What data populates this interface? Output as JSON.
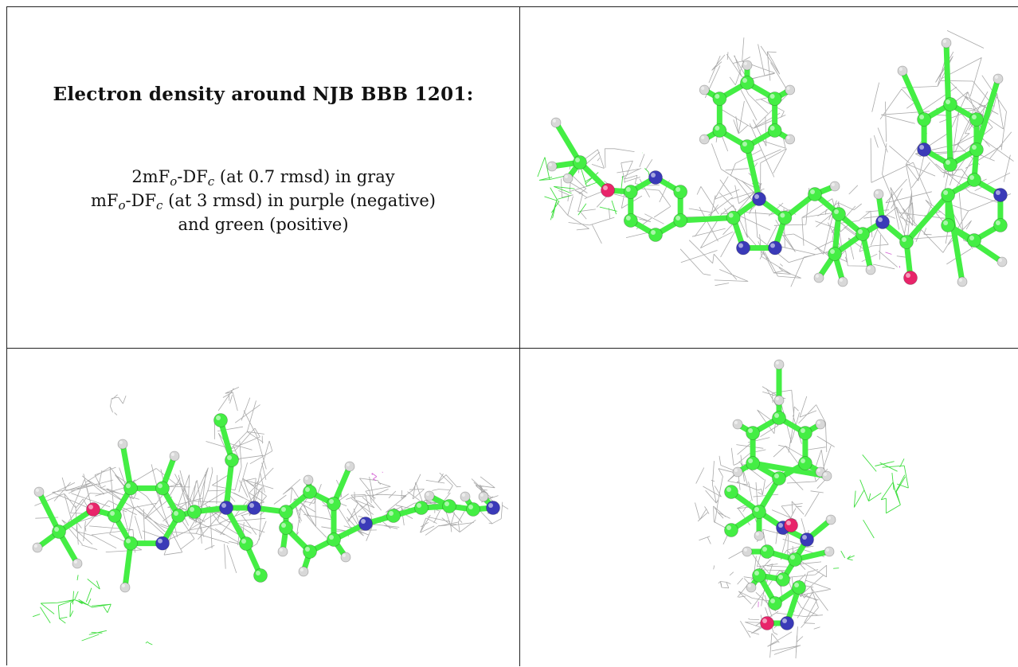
{
  "caption": {
    "title": "Electron density around NJB BBB 1201:",
    "line1": {
      "pre": "2mF",
      "sub1": "o",
      "mid": "-DF",
      "sub2": "c",
      "post": " (at 0.7 rmsd) in gray"
    },
    "line2": {
      "pre": "mF",
      "sub1": "o",
      "mid": "-DF",
      "sub2": "c",
      "post": " (at 3 rmsd) in purple (negative)"
    },
    "line3": "and green (positive)"
  },
  "colors": {
    "carbon": "#44ee44",
    "carbon_dark": "#1fa51f",
    "nitrogen": "#3a3ab8",
    "oxygen": "#e8246a",
    "hydrogen": "#d8d8d8",
    "mesh_gray": "#9a9a9a",
    "mesh_green": "#1fd81f",
    "mesh_purple": "#d050d0"
  },
  "panels": [
    {
      "id": "view-top-right",
      "name": "ligand-view-front"
    },
    {
      "id": "view-bottom-left",
      "name": "ligand-view-side"
    },
    {
      "id": "view-bottom-right",
      "name": "ligand-view-end"
    }
  ]
}
